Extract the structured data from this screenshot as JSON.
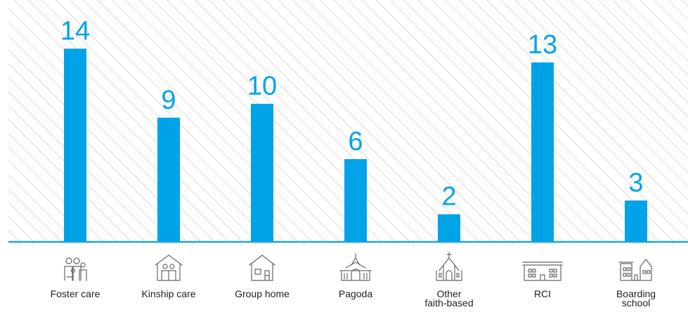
{
  "chart_data": {
    "type": "bar",
    "categories": [
      "Foster care",
      "Kinship care",
      "Group home",
      "Pagoda",
      "Other faith-based",
      "RCI",
      "Boarding school"
    ],
    "category_lines": [
      [
        "Foster care"
      ],
      [
        "Kinship care"
      ],
      [
        "Group home"
      ],
      [
        "Pagoda"
      ],
      [
        "Other",
        "faith-based"
      ],
      [
        "RCI"
      ],
      [
        "Boarding",
        "school"
      ]
    ],
    "values": [
      14,
      9,
      10,
      6,
      2,
      13,
      3
    ],
    "icons": [
      "family-icon",
      "house-with-family-icon",
      "house-icon",
      "pagoda-icon",
      "church-icon",
      "building-icon",
      "school-building-icon"
    ],
    "ylim": [
      0,
      16
    ],
    "grid": false,
    "legend": "none",
    "bar_color": "#00a3e8",
    "label_color": "#00a3e8",
    "axis_color": "#1ba3e2",
    "hatch_color": "#b5b5b5"
  }
}
